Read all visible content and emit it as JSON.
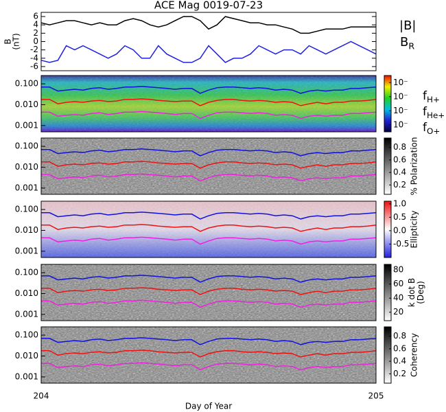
{
  "chart_data": [
    {
      "type": "line",
      "title": "ACE Mag 0019-07-23",
      "ylabel": [
        "B",
        "(nT)"
      ],
      "x": [
        204,
        204.025,
        204.05,
        204.075,
        204.1,
        204.125,
        204.15,
        204.175,
        204.2,
        204.225,
        204.25,
        204.275,
        204.3,
        204.325,
        204.35,
        204.375,
        204.4,
        204.425,
        204.45,
        204.475,
        204.5,
        204.525,
        204.55,
        204.575,
        204.6,
        204.625,
        204.65,
        204.675,
        204.7,
        204.725,
        204.75,
        204.775,
        204.8,
        204.825,
        204.85,
        204.875,
        204.9,
        204.925,
        204.95,
        204.975,
        205
      ],
      "xlim": [
        204,
        205
      ],
      "ylim": [
        -7,
        7
      ],
      "yticks": [
        -6,
        -4,
        -2,
        0,
        2,
        4,
        6
      ],
      "series": [
        {
          "name": "|B|",
          "color": "#000000",
          "values": [
            4.5,
            4,
            4.5,
            5,
            5,
            4.5,
            4,
            4.5,
            4,
            4,
            5,
            5.5,
            5,
            4,
            3.5,
            4,
            5,
            6,
            6,
            5,
            3,
            4,
            6,
            5.5,
            5,
            4.5,
            4.5,
            4,
            4,
            3.5,
            3,
            2,
            2,
            2.5,
            3,
            3,
            3,
            3.5,
            3.5,
            3.5,
            3.5
          ]
        },
        {
          "name": "B",
          "sub": "R",
          "color": "#2020e0",
          "values": [
            -4.5,
            -5,
            -4.5,
            -1,
            -2,
            -1,
            -2,
            -3,
            -4,
            -3,
            -1,
            -2,
            -4,
            -4,
            -1,
            -3,
            -4,
            -5,
            -5,
            -4,
            -1,
            -3,
            -5,
            -4,
            -4,
            -3,
            -1,
            -2,
            -3,
            -2,
            -2,
            -3,
            -1,
            -2,
            -3,
            -2,
            -1,
            0,
            -1,
            -2,
            -3
          ]
        }
      ]
    },
    {
      "type": "spectrogram",
      "log_y": true,
      "ylim": [
        0.0005,
        0.25
      ],
      "yticks": [
        {
          "value": 0.1,
          "label": "0.100"
        },
        {
          "value": 0.01,
          "label": "0.010"
        },
        {
          "value": 0.001,
          "label": "0.001"
        }
      ],
      "colormap": "rainbow",
      "clim": [
        0.5,
        4.5
      ],
      "cticks": [
        {
          "value": 1,
          "label": "10⁻"
        },
        {
          "value": 2,
          "label": "10⁻"
        },
        {
          "value": 3,
          "label": "10⁻"
        },
        {
          "value": 4,
          "label": "10⁻"
        }
      ],
      "series": [
        {
          "name": "f",
          "sub": "H+",
          "color": "#1010e0",
          "values": [
            0.07,
            0.07,
            0.045,
            0.05,
            0.055,
            0.05,
            0.06,
            0.065,
            0.055,
            0.06,
            0.07,
            0.07,
            0.075,
            0.07,
            0.065,
            0.06,
            0.055,
            0.06,
            0.06,
            0.035,
            0.05,
            0.065,
            0.07,
            0.07,
            0.065,
            0.06,
            0.065,
            0.06,
            0.05,
            0.055,
            0.05,
            0.035,
            0.045,
            0.05,
            0.045,
            0.05,
            0.05,
            0.06,
            0.06,
            0.065,
            0.07
          ]
        },
        {
          "name": "f",
          "sub": "He+",
          "color": "#f01010",
          "values": [
            0.018,
            0.018,
            0.011,
            0.013,
            0.014,
            0.013,
            0.015,
            0.016,
            0.014,
            0.015,
            0.018,
            0.018,
            0.019,
            0.018,
            0.016,
            0.015,
            0.014,
            0.015,
            0.015,
            0.009,
            0.013,
            0.016,
            0.018,
            0.018,
            0.016,
            0.015,
            0.016,
            0.015,
            0.013,
            0.014,
            0.013,
            0.009,
            0.011,
            0.013,
            0.011,
            0.013,
            0.013,
            0.015,
            0.015,
            0.016,
            0.018
          ]
        },
        {
          "name": "f",
          "sub": "O+",
          "color": "#f020e0",
          "values": [
            0.0044,
            0.0044,
            0.0028,
            0.0031,
            0.0034,
            0.0031,
            0.0038,
            0.0041,
            0.0034,
            0.0038,
            0.0044,
            0.0044,
            0.0047,
            0.0044,
            0.0041,
            0.0038,
            0.0034,
            0.0038,
            0.0038,
            0.0022,
            0.0031,
            0.0041,
            0.0044,
            0.0044,
            0.0041,
            0.0038,
            0.0041,
            0.0038,
            0.0031,
            0.0034,
            0.0031,
            0.0022,
            0.0028,
            0.0031,
            0.0028,
            0.0031,
            0.0031,
            0.0038,
            0.0038,
            0.0041,
            0.0044
          ]
        }
      ]
    },
    {
      "type": "spectrogram",
      "log_y": true,
      "ylim": [
        0.0005,
        0.25
      ],
      "yticks": [
        {
          "value": 0.1,
          "label": "0.100"
        },
        {
          "value": 0.01,
          "label": "0.010"
        },
        {
          "value": 0.001,
          "label": "0.001"
        }
      ],
      "colormap": "gray",
      "clim": [
        0.05,
        0.95
      ],
      "cticks": [
        0.2,
        0.4,
        0.6,
        0.8
      ],
      "clabel": [
        "% Polarization"
      ]
    },
    {
      "type": "spectrogram",
      "log_y": true,
      "ylim": [
        0.0005,
        0.25
      ],
      "yticks": [
        {
          "value": 0.1,
          "label": "0.100"
        },
        {
          "value": 0.01,
          "label": "0.010"
        },
        {
          "value": 0.001,
          "label": "0.001"
        }
      ],
      "colormap": "bwr",
      "clim": [
        -1,
        1.1
      ],
      "cticks": [
        -0.5,
        {
          "value": 0,
          "label": "0.0"
        },
        0.5,
        {
          "value": 1,
          "label": "1.0"
        }
      ],
      "clabel": [
        "Ellipticity"
      ]
    },
    {
      "type": "spectrogram",
      "log_y": true,
      "ylim": [
        0.0005,
        0.25
      ],
      "yticks": [
        {
          "value": 0.1,
          "label": "0.100"
        },
        {
          "value": 0.01,
          "label": "0.010"
        },
        {
          "value": 0.001,
          "label": "0.001"
        }
      ],
      "colormap": "gray",
      "clim": [
        8,
        88
      ],
      "cticks": [
        20,
        40,
        60,
        80
      ],
      "clabel": [
        "k dot B",
        "(Deg)"
      ]
    },
    {
      "type": "spectrogram",
      "log_y": true,
      "ylim": [
        0.0005,
        0.25
      ],
      "yticks": [
        {
          "value": 0.1,
          "label": "0.100"
        },
        {
          "value": 0.01,
          "label": "0.010"
        },
        {
          "value": 0.001,
          "label": "0.001"
        }
      ],
      "colormap": "gray",
      "clim": [
        0.05,
        0.95
      ],
      "cticks": [
        0.2,
        0.4,
        0.6,
        0.8
      ],
      "clabel": [
        "Coherency"
      ],
      "xticks": [
        204,
        205
      ],
      "xlabel": "Day of Year"
    }
  ]
}
